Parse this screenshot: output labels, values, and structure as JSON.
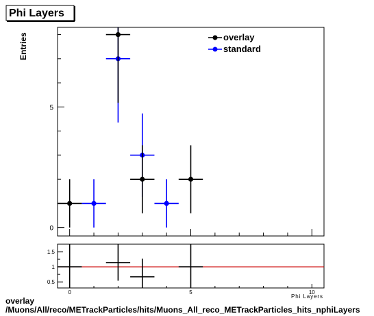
{
  "title": "Phi Layers",
  "ylabel": "Entries",
  "xlabel_clipped": "Phi Layers",
  "footer": {
    "line1": "overlay",
    "line2": "/Muons/All/reco/METrackParticles/hits/Muons_All_reco_METrackParticles_hits_nphiLayers"
  },
  "legend": [
    {
      "name": "overlay",
      "color": "#000000"
    },
    {
      "name": "standard",
      "color": "#0000ff"
    }
  ],
  "chart_data": [
    {
      "type": "scatter",
      "title": "Phi Layers",
      "ylabel": "Entries",
      "xlim": [
        -0.5,
        10.5
      ],
      "ylim": [
        -0.35,
        8.3
      ],
      "x_ticks": [
        0,
        5,
        10
      ],
      "y_ticks": [
        0,
        5
      ],
      "grid": false,
      "legend_position": "top-right",
      "series": [
        {
          "name": "overlay",
          "color": "#000000",
          "points": [
            {
              "x": 0,
              "y": 1,
              "err": 1.0
            },
            {
              "x": 2,
              "y": 8,
              "err": 2.83
            },
            {
              "x": 3,
              "y": 2,
              "err": 1.41
            },
            {
              "x": 5,
              "y": 2,
              "err": 1.41
            }
          ]
        },
        {
          "name": "standard",
          "color": "#0000ff",
          "points": [
            {
              "x": 1,
              "y": 1,
              "err": 1.0
            },
            {
              "x": 2,
              "y": 7,
              "err": 2.65
            },
            {
              "x": 3,
              "y": 3,
              "err": 1.73
            },
            {
              "x": 4,
              "y": 1,
              "err": 1.0
            }
          ]
        }
      ]
    },
    {
      "type": "scatter",
      "xlim": [
        -0.5,
        10.5
      ],
      "ylim": [
        0.3,
        1.75
      ],
      "y_ticks": [
        0.5,
        1,
        1.5
      ],
      "y_tick_labels": [
        "0.5",
        "1",
        "1.5"
      ],
      "x_tick_labels": [
        "0",
        "5",
        "10"
      ],
      "reference_line": {
        "y": 1,
        "color": "#cc0000"
      },
      "series": [
        {
          "name": "ratio",
          "color": "#000000",
          "points": [
            {
              "x": 0,
              "y": 1.0,
              "err": 1.5
            },
            {
              "x": 2,
              "y": 1.14,
              "err": 0.6
            },
            {
              "x": 3,
              "y": 0.67,
              "err": 0.6
            },
            {
              "x": 5,
              "y": 1.0,
              "err": 1.5
            }
          ]
        }
      ]
    }
  ]
}
